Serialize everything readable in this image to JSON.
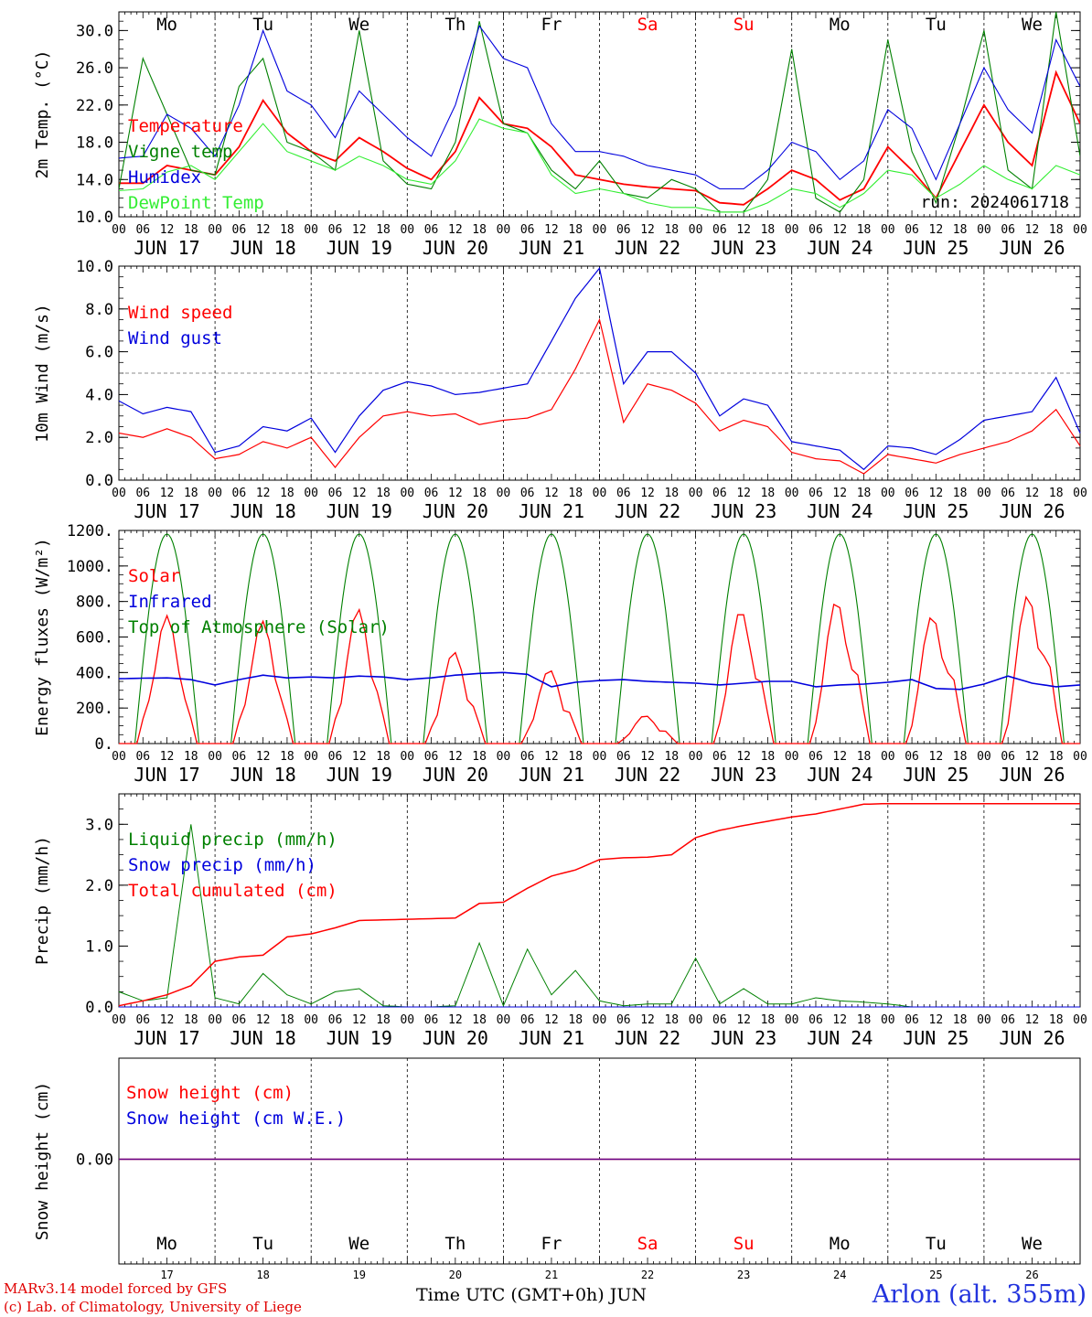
{
  "chart_data": [
    {
      "type": "line",
      "title": "",
      "ylabel": "2m Temp. (°C)",
      "ylim": [
        10,
        32
      ],
      "yticks": [
        "10.0",
        "14.0",
        "18.0",
        "22.0",
        "26.0",
        "30.0"
      ],
      "ytick_values": [
        10,
        14,
        18,
        22,
        26,
        30
      ],
      "weekdays": [
        "Mo",
        "Tu",
        "We",
        "Th",
        "Fr",
        "Sa",
        "Su",
        "Mo",
        "Tu",
        "We"
      ],
      "annotation": "run: 2024061718",
      "x_hours": [
        0,
        6,
        12,
        18,
        24,
        30,
        36,
        42,
        48,
        54,
        60,
        66,
        72,
        78,
        84,
        90,
        96,
        102,
        108,
        114,
        120,
        126,
        132,
        138,
        144,
        150,
        156,
        162,
        168,
        174,
        180,
        186,
        192,
        198,
        204,
        210,
        216,
        222,
        228,
        234,
        240
      ],
      "series": [
        {
          "name": "Temperature",
          "color": "#ff0000",
          "values": [
            13.6,
            13.6,
            15.5,
            15.0,
            14.5,
            17.5,
            22.5,
            19.0,
            17.0,
            16.0,
            18.5,
            17.0,
            15.2,
            14.0,
            17.0,
            22.8,
            20.0,
            19.5,
            17.5,
            14.5,
            14.0,
            13.5,
            13.2,
            13.0,
            12.8,
            11.5,
            11.3,
            13.0,
            15.0,
            14.0,
            11.8,
            13.0,
            17.5,
            15.0,
            12.0,
            17.0,
            22.0,
            18.0,
            15.5,
            25.5,
            20.0
          ]
        },
        {
          "name": "Vigne temp",
          "color": "#008000",
          "values": [
            13.0,
            27.0,
            21.0,
            15.0,
            14.5,
            24.0,
            27.0,
            18.0,
            17.0,
            15.0,
            30.0,
            16.0,
            13.5,
            13.0,
            18.0,
            31.0,
            20.0,
            19.0,
            15.0,
            13.0,
            16.0,
            12.5,
            12.0,
            14.0,
            13.0,
            10.5,
            10.5,
            14.0,
            28.0,
            12.0,
            10.5,
            14.0,
            29.0,
            17.0,
            11.5,
            20.0,
            30.0,
            15.0,
            13.0,
            32.0,
            16.5
          ]
        },
        {
          "name": "Humidex",
          "color": "#0000dd",
          "values": [
            16.3,
            16.5,
            21.0,
            19.5,
            16.5,
            22.0,
            30.0,
            23.5,
            22.0,
            18.5,
            23.5,
            21.0,
            18.5,
            16.5,
            22.0,
            30.5,
            27.0,
            26.0,
            20.0,
            17.0,
            17.0,
            16.5,
            15.5,
            15.0,
            14.5,
            13.0,
            13.0,
            15.0,
            18.0,
            17.0,
            14.0,
            16.0,
            21.5,
            19.5,
            14.0,
            20.0,
            26.0,
            21.5,
            19.0,
            29.0,
            24.0
          ]
        },
        {
          "name": "DewPoint Temp",
          "color": "#33ee33",
          "values": [
            12.8,
            13.0,
            14.8,
            15.5,
            14.0,
            17.0,
            20.0,
            17.0,
            16.0,
            15.0,
            16.5,
            15.5,
            14.0,
            13.5,
            16.0,
            20.5,
            19.5,
            19.0,
            14.5,
            12.5,
            13.0,
            12.5,
            11.5,
            11.0,
            11.0,
            10.5,
            10.5,
            11.5,
            13.0,
            12.5,
            11.0,
            12.5,
            15.0,
            14.5,
            12.0,
            13.5,
            15.5,
            14.0,
            13.0,
            15.5,
            14.5
          ]
        }
      ]
    },
    {
      "type": "line",
      "title": "",
      "ylabel": "10m Wind (m/s)",
      "ylim": [
        0,
        10
      ],
      "yticks": [
        "0.0",
        "2.0",
        "4.0",
        "6.0",
        "8.0",
        "10.0"
      ],
      "ytick_values": [
        0,
        2,
        4,
        6,
        8,
        10
      ],
      "reference_line": 5,
      "x_hours": [
        0,
        6,
        12,
        18,
        24,
        30,
        36,
        42,
        48,
        54,
        60,
        66,
        72,
        78,
        84,
        90,
        96,
        102,
        108,
        114,
        120,
        126,
        132,
        138,
        144,
        150,
        156,
        162,
        168,
        174,
        180,
        186,
        192,
        198,
        204,
        210,
        216,
        222,
        228,
        234,
        240
      ],
      "series": [
        {
          "name": "Wind speed",
          "color": "#ff0000",
          "values": [
            2.2,
            2.0,
            2.4,
            2.0,
            1.0,
            1.2,
            1.8,
            1.5,
            2.0,
            0.6,
            2.0,
            3.0,
            3.2,
            3.0,
            3.1,
            2.6,
            2.8,
            2.9,
            3.3,
            5.2,
            7.5,
            2.7,
            4.5,
            4.2,
            3.6,
            2.3,
            2.8,
            2.5,
            1.3,
            1.0,
            0.9,
            0.3,
            1.2,
            1.0,
            0.8,
            1.2,
            1.5,
            1.8,
            2.3,
            3.3,
            1.6
          ]
        },
        {
          "name": "Wind gust",
          "color": "#0000dd",
          "values": [
            3.7,
            3.1,
            3.4,
            3.2,
            1.3,
            1.6,
            2.5,
            2.3,
            2.9,
            1.3,
            3.0,
            4.2,
            4.6,
            4.4,
            4.0,
            4.1,
            4.3,
            4.5,
            6.5,
            8.5,
            9.9,
            4.5,
            6.0,
            6.0,
            5.0,
            3.0,
            3.8,
            3.5,
            1.8,
            1.6,
            1.4,
            0.5,
            1.6,
            1.5,
            1.2,
            1.9,
            2.8,
            3.0,
            3.2,
            4.8,
            2.2
          ]
        }
      ]
    },
    {
      "type": "line",
      "title": "",
      "ylabel": "Energy fluxes (W/m²)",
      "ylim": [
        0,
        1200
      ],
      "yticks": [
        "0.",
        "200.",
        "400.",
        "600.",
        "800.",
        "1000.",
        "1200."
      ],
      "ytick_values": [
        0,
        200,
        400,
        600,
        800,
        1000,
        1200
      ],
      "toa_peak": 1180,
      "solar_daily_peaks": [
        720,
        690,
        760,
        520,
        420,
        160,
        770,
        830,
        750,
        880
      ],
      "x_hours": [
        0,
        6,
        12,
        18,
        24,
        30,
        36,
        42,
        48,
        54,
        60,
        66,
        72,
        78,
        84,
        90,
        96,
        102,
        108,
        114,
        120,
        126,
        132,
        138,
        144,
        150,
        156,
        162,
        168,
        174,
        180,
        186,
        192,
        198,
        204,
        210,
        216,
        222,
        228,
        234,
        240
      ],
      "series": [
        {
          "name": "Solar",
          "color": "#ff0000"
        },
        {
          "name": "Infrared",
          "color": "#0000dd",
          "values": [
            365,
            368,
            370,
            360,
            330,
            360,
            385,
            370,
            375,
            370,
            380,
            375,
            360,
            370,
            385,
            395,
            400,
            390,
            320,
            345,
            355,
            360,
            350,
            345,
            340,
            330,
            340,
            350,
            350,
            320,
            330,
            335,
            345,
            360,
            310,
            305,
            335,
            380,
            340,
            320,
            330
          ]
        },
        {
          "name": "Top of Atmosphere (Solar)",
          "color": "#008000"
        }
      ]
    },
    {
      "type": "line",
      "title": "",
      "ylabel": "Precip (mm/h)",
      "ylim": [
        0,
        3.5
      ],
      "yticks": [
        "0.0",
        "1.0",
        "2.0",
        "3.0"
      ],
      "ytick_values": [
        0,
        1,
        2,
        3
      ],
      "x_hours": [
        0,
        6,
        12,
        18,
        24,
        30,
        36,
        42,
        48,
        54,
        60,
        66,
        72,
        78,
        84,
        90,
        96,
        102,
        108,
        114,
        120,
        126,
        132,
        138,
        144,
        150,
        156,
        162,
        168,
        174,
        180,
        186,
        192,
        198,
        204,
        210,
        216,
        222,
        228,
        234,
        240
      ],
      "series": [
        {
          "name": "Liquid precip (mm/h)",
          "color": "#008000",
          "values": [
            0.25,
            0.1,
            0.15,
            3.0,
            0.15,
            0.05,
            0.55,
            0.2,
            0.05,
            0.25,
            0.3,
            0.02,
            0.0,
            0.0,
            0.02,
            1.05,
            0.02,
            0.95,
            0.2,
            0.6,
            0.1,
            0.02,
            0.05,
            0.05,
            0.8,
            0.05,
            0.3,
            0.05,
            0.05,
            0.15,
            0.1,
            0.08,
            0.05,
            0.0,
            0.0,
            0.0,
            0.0,
            0.0,
            0.0,
            0.0,
            0.0
          ]
        },
        {
          "name": "Snow precip (mm/h)",
          "color": "#0000dd",
          "values": [
            0,
            0,
            0,
            0,
            0,
            0,
            0,
            0,
            0,
            0,
            0,
            0,
            0,
            0,
            0,
            0,
            0,
            0,
            0,
            0,
            0,
            0,
            0,
            0,
            0,
            0,
            0,
            0,
            0,
            0,
            0,
            0,
            0,
            0,
            0,
            0,
            0,
            0,
            0,
            0,
            0
          ]
        },
        {
          "name": "Total cumulated (cm)",
          "color": "#ff0000",
          "values": [
            0.02,
            0.1,
            0.2,
            0.35,
            0.75,
            0.82,
            0.85,
            1.15,
            1.2,
            1.3,
            1.42,
            1.43,
            1.44,
            1.45,
            1.46,
            1.7,
            1.72,
            1.95,
            2.15,
            2.25,
            2.42,
            2.45,
            2.46,
            2.5,
            2.78,
            2.9,
            2.98,
            3.05,
            3.12,
            3.17,
            3.25,
            3.33,
            3.34,
            3.34,
            3.34,
            3.34,
            3.34,
            3.34,
            3.34,
            3.34,
            3.34
          ]
        }
      ]
    },
    {
      "type": "line",
      "title": "",
      "ylabel": "Snow height (cm)",
      "yticks": [
        "0.00"
      ],
      "x_hours": [
        0,
        240
      ],
      "series": [
        {
          "name": "Snow height (cm)",
          "color": "#ff0000",
          "values": [
            0,
            0
          ]
        },
        {
          "name": "Snow height (cm W.E.)",
          "color": "#0000dd",
          "values": [
            0,
            0
          ]
        }
      ],
      "weekdays": [
        "Mo",
        "Tu",
        "We",
        "Th",
        "Fr",
        "Sa",
        "Su",
        "Mo",
        "Tu",
        "We"
      ],
      "day_numbers": [
        "17",
        "18",
        "19",
        "20",
        "21",
        "22",
        "23",
        "24",
        "25",
        "26"
      ]
    }
  ],
  "x_axis": {
    "hour_ticks": [
      "00",
      "06",
      "12",
      "18"
    ],
    "final_tick": "00",
    "date_labels": [
      "JUN 17",
      "JUN 18",
      "JUN 19",
      "JUN 20",
      "JUN 21",
      "JUN 22",
      "JUN 23",
      "JUN 24",
      "JUN 25",
      "JUN 26"
    ],
    "weekend_days": [
      "Sa",
      "Su"
    ],
    "weekend_color": "#ff0000"
  },
  "footer": {
    "credit_line1": "MARv3.14 model forced by GFS",
    "credit_line2": "(c) Lab. of Climatology, University of Liege",
    "time_label": "Time UTC (GMT+0h) JUN",
    "station": "Arlon (alt. 355m)"
  }
}
